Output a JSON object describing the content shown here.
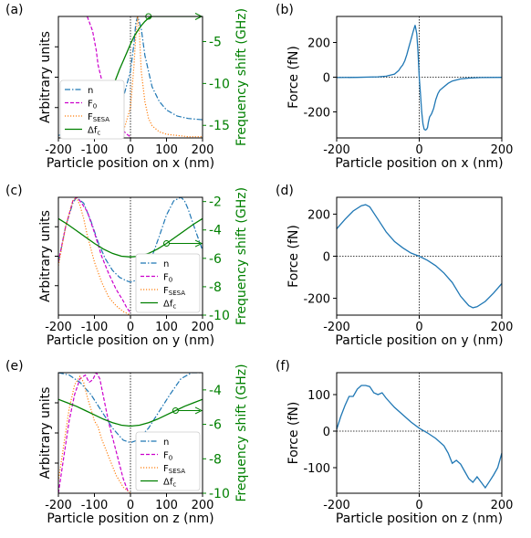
{
  "chart_data": [
    {
      "panel": "(a)",
      "type": "line",
      "xlabel": "Particle position on x (nm)",
      "ylabel": "Arbitrary units",
      "ylabel_right": "Frequency shift (GHz)",
      "xlim": [
        -200,
        200
      ],
      "xticks": [
        "-200",
        "-100",
        "0",
        "100",
        "200"
      ],
      "ylim_right": [
        -16.5,
        -2
      ],
      "yticks_right": [
        "-5",
        "-10",
        "-15"
      ],
      "ytick_values_right": [
        -5,
        -10,
        -15
      ],
      "legend": {
        "placement": "left-lower",
        "entries": [
          "n",
          "F_0",
          "F_SESA",
          "Δf_c"
        ]
      },
      "norm_series": [
        {
          "name": "n",
          "color": "#1f77b4",
          "dash": "dashdot",
          "x": [
            -200,
            -100,
            -60,
            -40,
            -20,
            0,
            10,
            15,
            20,
            30,
            40,
            60,
            80,
            100,
            130,
            160,
            200
          ],
          "y": [
            0.02,
            0.09,
            0.15,
            0.22,
            0.33,
            0.55,
            0.78,
            0.95,
            1.0,
            0.9,
            0.68,
            0.42,
            0.3,
            0.23,
            0.18,
            0.16,
            0.15
          ]
        },
        {
          "name": "F_0",
          "color": "#cc00cc",
          "dash": "dashed",
          "x": [
            -120,
            -105,
            -95,
            -90,
            -80,
            -70,
            -60,
            -50,
            -40,
            -30,
            -20,
            -10,
            0
          ],
          "y": [
            1.0,
            0.88,
            0.72,
            0.6,
            0.48,
            0.35,
            0.27,
            0.2,
            0.15,
            0.1,
            0.06,
            0.03,
            0.01
          ]
        },
        {
          "name": "F_SESA",
          "color": "#ff7f0e",
          "dash": "dotted",
          "x": [
            -200,
            -100,
            -60,
            -40,
            -20,
            0,
            10,
            15,
            20,
            25,
            30,
            40,
            50,
            60,
            80,
            100,
            130,
            160,
            200
          ],
          "y": [
            0,
            0,
            0,
            0.01,
            0.05,
            0.25,
            0.6,
            0.85,
            1.0,
            0.85,
            0.55,
            0.3,
            0.16,
            0.1,
            0.05,
            0.03,
            0.02,
            0.01,
            0.01
          ]
        }
      ],
      "freq_series": {
        "name": "Δf_c",
        "color": "#008000",
        "x": [
          -85,
          -80,
          -70,
          -60,
          -50,
          -40,
          -30,
          -20,
          -10,
          0,
          10,
          20,
          30,
          40,
          50,
          60,
          80,
          100,
          120,
          150,
          200
        ],
        "y": [
          -16.5,
          -15.2,
          -13.5,
          -11.9,
          -10.6,
          -9.4,
          -8.3,
          -7.3,
          -6.3,
          -5.3,
          -4.4,
          -3.7,
          -3.1,
          -2.6,
          -2.2,
          -2.0,
          -2.0,
          -2.0,
          -2.0,
          -2.0,
          -2.0
        ]
      },
      "marker": {
        "x": 50,
        "y": -2.0
      }
    },
    {
      "panel": "(b)",
      "type": "line",
      "xlabel": "Particle position on x (nm)",
      "ylabel": "Force (fN)",
      "xlim": [
        -200,
        200
      ],
      "ylim": [
        -350,
        350
      ],
      "xticks": [
        "-200",
        "0",
        "200"
      ],
      "xtick_values": [
        -200,
        0,
        200
      ],
      "yticks": [
        "200",
        "0",
        "-200"
      ],
      "ytick_values": [
        200,
        0,
        -200
      ],
      "series": [
        {
          "name": "",
          "color": "#1f77b4",
          "x": [
            -200,
            -150,
            -100,
            -80,
            -60,
            -50,
            -45,
            -40,
            -35,
            -30,
            -25,
            -20,
            -15,
            -10,
            -6,
            -3,
            0,
            3,
            6,
            9,
            12,
            15,
            18,
            20,
            22,
            25,
            30,
            35,
            40,
            45,
            50,
            60,
            70,
            80,
            100,
            120,
            150,
            200
          ],
          "y": [
            -2,
            -1,
            2,
            6,
            18,
            38,
            55,
            70,
            95,
            130,
            175,
            215,
            260,
            300,
            250,
            150,
            0,
            -100,
            -200,
            -270,
            -300,
            -305,
            -300,
            -290,
            -260,
            -230,
            -210,
            -180,
            -130,
            -95,
            -75,
            -55,
            -35,
            -22,
            -10,
            -5,
            -2,
            -1
          ]
        }
      ]
    },
    {
      "panel": "(c)",
      "type": "line",
      "xlabel": "Particle position on y (nm)",
      "ylabel": "Arbitrary units",
      "ylabel_right": "Frequency shift (GHz)",
      "xlim": [
        -200,
        200
      ],
      "xticks": [
        "-200",
        "-100",
        "0",
        "100",
        "200"
      ],
      "ylim_right": [
        -10,
        -1.7
      ],
      "yticks_right": [
        "-2",
        "-4",
        "-6",
        "-8",
        "-10"
      ],
      "ytick_values_right": [
        -2,
        -4,
        -6,
        -8,
        -10
      ],
      "legend": {
        "placement": "bottom-right",
        "entries": [
          "n",
          "F_0",
          "F_SESA",
          "Δf_c"
        ]
      },
      "norm_series": [
        {
          "name": "n",
          "color": "#1f77b4",
          "dash": "dashdot",
          "x": [
            -200,
            -180,
            -160,
            -150,
            -130,
            -110,
            -90,
            -70,
            -50,
            -30,
            -10,
            0,
            20,
            40,
            60,
            80,
            100,
            120,
            140,
            150,
            160,
            180,
            200
          ],
          "y": [
            0.45,
            0.75,
            0.95,
            1.0,
            0.95,
            0.8,
            0.62,
            0.48,
            0.38,
            0.32,
            0.29,
            0.28,
            0.3,
            0.37,
            0.5,
            0.67,
            0.85,
            0.97,
            1.0,
            0.97,
            0.9,
            0.72,
            0.55
          ]
        },
        {
          "name": "F_0",
          "color": "#cc00cc",
          "dash": "dashed",
          "x": [
            -200,
            -180,
            -160,
            -150,
            -140,
            -120,
            -100,
            -80,
            -60,
            -40,
            -20,
            -10,
            0
          ],
          "y": [
            0.45,
            0.75,
            0.97,
            1.0,
            0.97,
            0.88,
            0.7,
            0.5,
            0.35,
            0.22,
            0.12,
            0.06,
            0.02
          ]
        },
        {
          "name": "F_SESA",
          "color": "#ff7f0e",
          "dash": "dotted",
          "x": [
            -200,
            -180,
            -160,
            -150,
            -140,
            -130,
            -120,
            -100,
            -80,
            -60,
            -40,
            -20,
            0
          ],
          "y": [
            0.42,
            0.75,
            0.97,
            1.0,
            0.93,
            0.82,
            0.68,
            0.45,
            0.28,
            0.15,
            0.08,
            0.03,
            0.0
          ]
        }
      ],
      "freq_series": {
        "name": "Δf_c",
        "color": "#008000",
        "x": [
          -200,
          -175,
          -150,
          -125,
          -100,
          -75,
          -50,
          -25,
          0,
          25,
          50,
          75,
          100,
          125,
          150,
          175,
          200
        ],
        "y": [
          -3.2,
          -3.6,
          -4.05,
          -4.5,
          -4.95,
          -5.35,
          -5.65,
          -5.85,
          -5.9,
          -5.85,
          -5.65,
          -5.35,
          -4.95,
          -4.5,
          -4.05,
          -3.6,
          -3.2
        ]
      },
      "marker": {
        "x": 100,
        "y": -4.95
      }
    },
    {
      "panel": "(d)",
      "type": "line",
      "xlabel": "Particle position on y (nm)",
      "ylabel": "Force (fN)",
      "xlim": [
        -200,
        200
      ],
      "ylim": [
        -280,
        280
      ],
      "xticks": [
        "-200",
        "0",
        "200"
      ],
      "xtick_values": [
        -200,
        0,
        200
      ],
      "yticks": [
        "200",
        "0",
        "-200"
      ],
      "ytick_values": [
        200,
        0,
        -200
      ],
      "series": [
        {
          "name": "",
          "color": "#1f77b4",
          "x": [
            -200,
            -180,
            -160,
            -140,
            -130,
            -120,
            -100,
            -80,
            -60,
            -40,
            -20,
            0,
            20,
            40,
            60,
            80,
            100,
            120,
            130,
            140,
            160,
            180,
            200
          ],
          "y": [
            130,
            175,
            215,
            240,
            245,
            235,
            175,
            115,
            70,
            40,
            15,
            0,
            -20,
            -45,
            -80,
            -125,
            -190,
            -235,
            -245,
            -240,
            -215,
            -175,
            -130
          ]
        }
      ]
    },
    {
      "panel": "(e)",
      "type": "line",
      "xlabel": "Particle position on z (nm)",
      "ylabel": "Arbitrary units",
      "ylabel_right": "Frequency shift (GHz)",
      "xlim": [
        -200,
        200
      ],
      "xticks": [
        "-200",
        "-100",
        "0",
        "100",
        "200"
      ],
      "ylim_right": [
        -10,
        -3
      ],
      "yticks_right": [
        "-4",
        "-6",
        "-8",
        "-10"
      ],
      "ytick_values_right": [
        -4,
        -6,
        -8,
        -10
      ],
      "legend": {
        "placement": "bottom-right",
        "entries": [
          "n",
          "F_0",
          "F_SESA",
          "Δf_c"
        ]
      },
      "norm_series": [
        {
          "name": "n",
          "color": "#1f77b4",
          "dash": "dashdot",
          "x": [
            -200,
            -170,
            -140,
            -110,
            -80,
            -50,
            -20,
            0,
            20,
            50,
            80,
            110,
            140,
            170,
            200
          ],
          "y": [
            1.0,
            0.98,
            0.92,
            0.82,
            0.68,
            0.54,
            0.44,
            0.42,
            0.44,
            0.54,
            0.68,
            0.82,
            0.95,
            1.0,
            1.0
          ]
        },
        {
          "name": "F_0",
          "color": "#cc00cc",
          "dash": "dashed",
          "x": [
            -200,
            -185,
            -170,
            -155,
            -140,
            -125,
            -115,
            -105,
            -95,
            -85,
            -75,
            -60,
            -40,
            -20,
            -5
          ],
          "y": [
            0.0,
            0.3,
            0.6,
            0.82,
            0.95,
            0.98,
            0.92,
            0.94,
            1.0,
            0.95,
            0.8,
            0.58,
            0.35,
            0.12,
            0.0
          ]
        },
        {
          "name": "F_SESA",
          "color": "#ff7f0e",
          "dash": "dotted",
          "x": [
            -200,
            -185,
            -170,
            -155,
            -140,
            -130,
            -120,
            -110,
            -100,
            -90,
            -80,
            -60,
            -40,
            -20,
            0
          ],
          "y": [
            0.1,
            0.4,
            0.7,
            0.9,
            0.97,
            0.92,
            0.8,
            0.7,
            0.6,
            0.55,
            0.45,
            0.3,
            0.15,
            0.05,
            0.0
          ]
        }
      ],
      "freq_series": {
        "name": "Δf_c",
        "color": "#008000",
        "x": [
          -200,
          -175,
          -150,
          -125,
          -100,
          -75,
          -50,
          -25,
          0,
          25,
          50,
          75,
          100,
          125,
          150,
          175,
          200
        ],
        "y": [
          -4.55,
          -4.75,
          -4.95,
          -5.2,
          -5.45,
          -5.7,
          -5.9,
          -6.05,
          -6.1,
          -6.05,
          -5.9,
          -5.7,
          -5.45,
          -5.2,
          -4.95,
          -4.75,
          -4.55
        ]
      },
      "marker": {
        "x": 125,
        "y": -5.2
      }
    },
    {
      "panel": "(f)",
      "type": "line",
      "xlabel": "Particle position on z (nm)",
      "ylabel": "Force (fN)",
      "xlim": [
        -200,
        200
      ],
      "ylim": [
        -170,
        160
      ],
      "xticks": [
        "-200",
        "0",
        "200"
      ],
      "xtick_values": [
        -200,
        0,
        200
      ],
      "yticks": [
        "100",
        "0",
        "-100"
      ],
      "ytick_values": [
        100,
        0,
        -100
      ],
      "series": [
        {
          "name": "",
          "color": "#1f77b4",
          "x": [
            -200,
            -190,
            -180,
            -170,
            -160,
            -150,
            -140,
            -130,
            -120,
            -110,
            -100,
            -90,
            -80,
            -60,
            -40,
            -20,
            0,
            20,
            40,
            60,
            70,
            80,
            90,
            100,
            110,
            120,
            130,
            140,
            150,
            160,
            170,
            180,
            190,
            200
          ],
          "y": [
            5,
            40,
            70,
            95,
            95,
            115,
            125,
            125,
            122,
            105,
            100,
            105,
            90,
            65,
            45,
            25,
            8,
            -5,
            -20,
            -40,
            -60,
            -88,
            -80,
            -90,
            -110,
            -130,
            -140,
            -125,
            -140,
            -155,
            -138,
            -120,
            -100,
            -60
          ]
        }
      ]
    }
  ]
}
